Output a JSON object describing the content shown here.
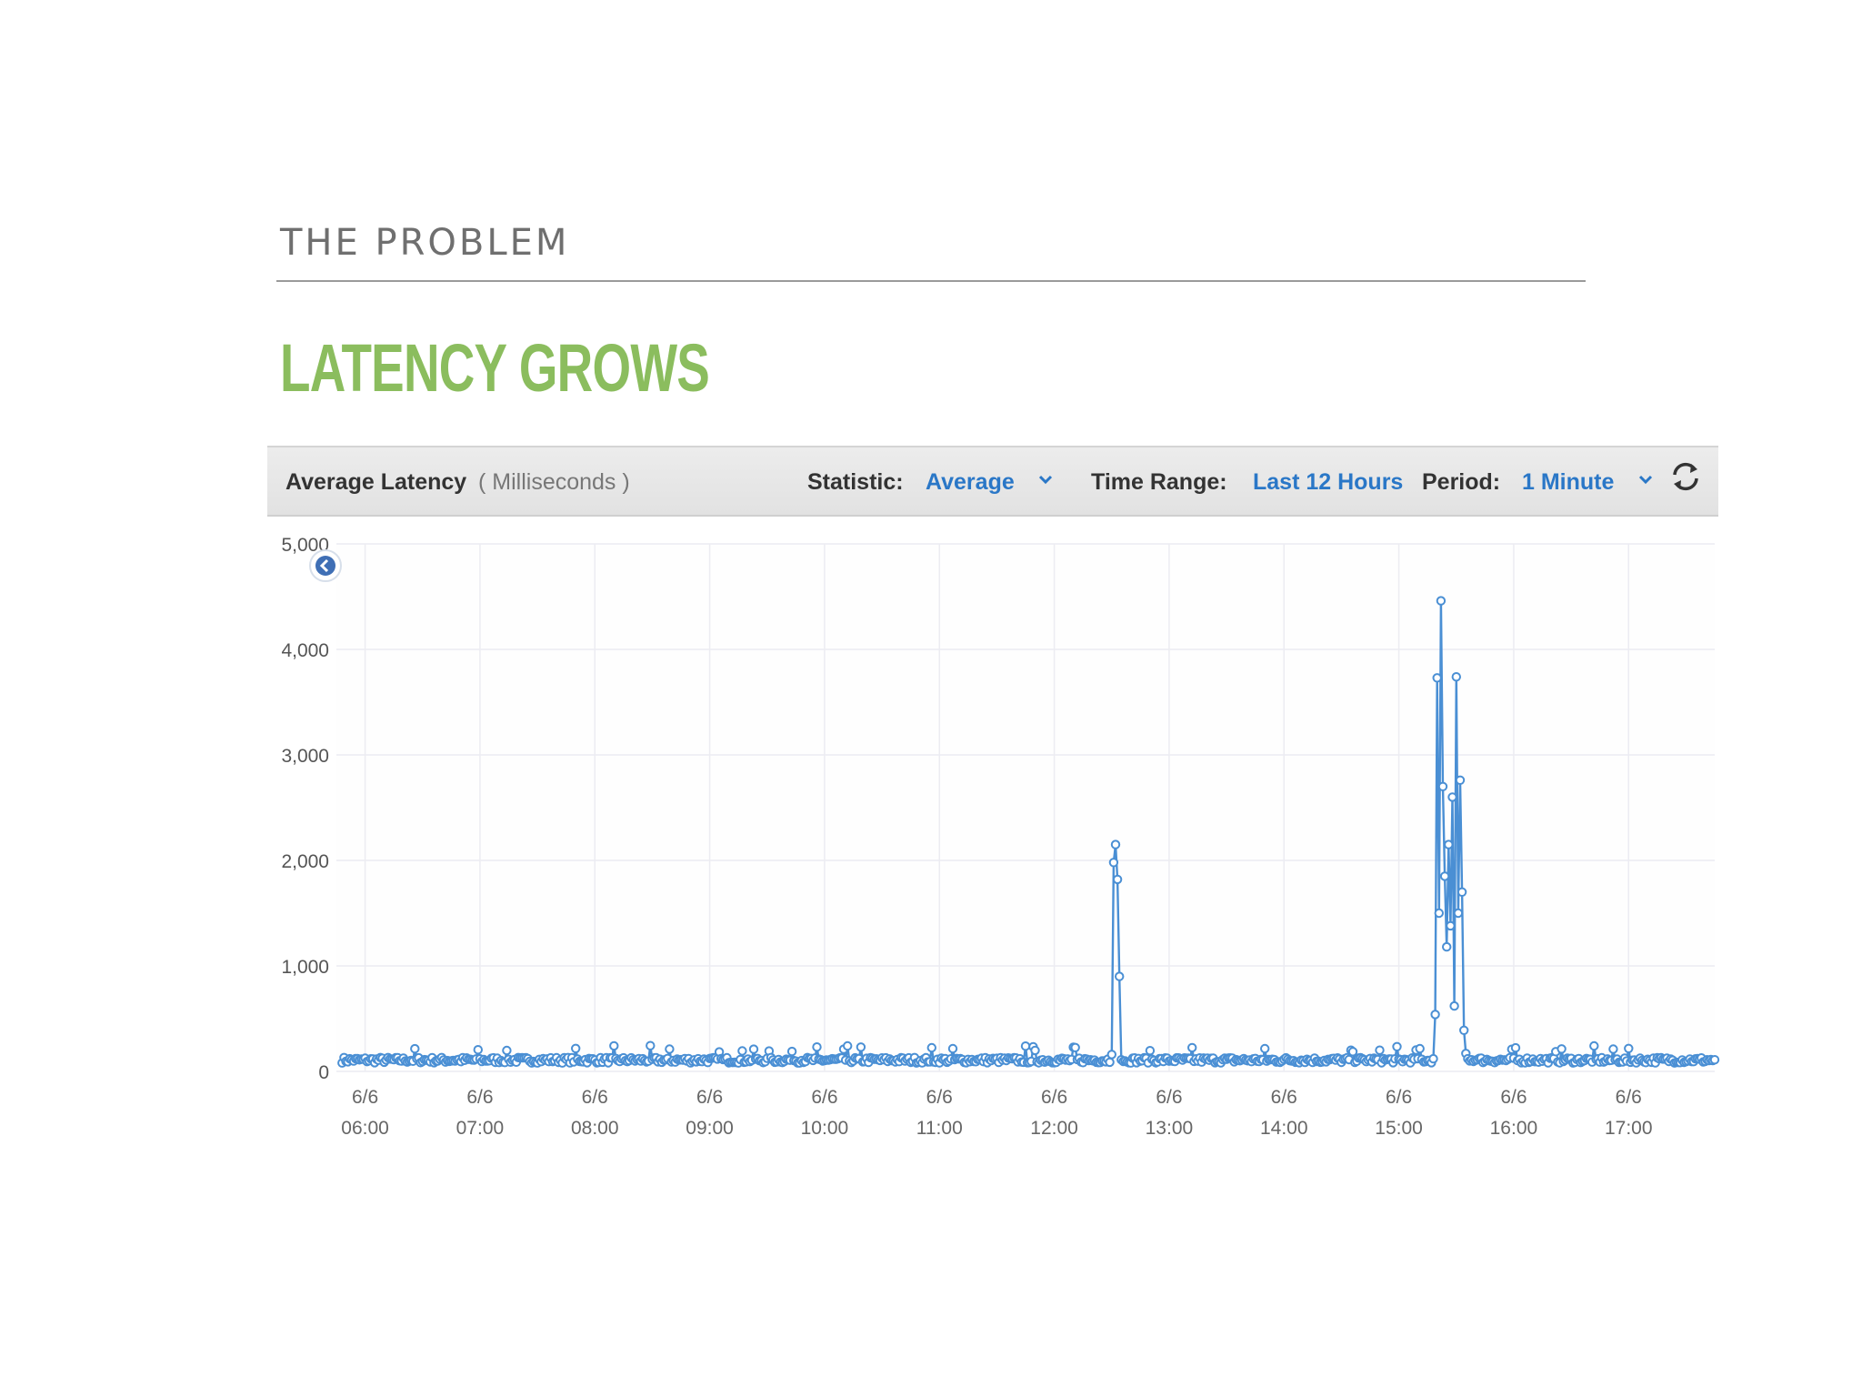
{
  "slide": {
    "kicker": "THE PROBLEM",
    "headline": "LATENCY GROWS"
  },
  "toolbar": {
    "metric_name": "Average Latency",
    "metric_unit": "( Milliseconds )",
    "statistic_label": "Statistic:",
    "statistic_value": "Average",
    "time_range_label": "Time Range:",
    "time_range_value": "Last 12 Hours",
    "period_label": "Period:",
    "period_value": "1 Minute",
    "accent_color": "#2a77c7",
    "refresh_icon": "refresh-icon",
    "dropdown_icon": "chevron-down-icon"
  },
  "chart_data": {
    "type": "line",
    "title": "",
    "xlabel": "",
    "ylabel": "",
    "ylim": [
      0,
      5000
    ],
    "yticks": [
      0,
      1000,
      2000,
      3000,
      4000,
      5000
    ],
    "ytick_labels": [
      "0",
      "1,000",
      "2,000",
      "3,000",
      "4,000",
      "5,000"
    ],
    "xlim": [
      "05:45",
      "17:45"
    ],
    "xticks": [
      "06:00",
      "07:00",
      "08:00",
      "09:00",
      "10:00",
      "11:00",
      "12:00",
      "13:00",
      "14:00",
      "15:00",
      "16:00",
      "17:00"
    ],
    "xtick_labels": [
      [
        "6/6",
        "06:00"
      ],
      [
        "6/6",
        "07:00"
      ],
      [
        "6/6",
        "08:00"
      ],
      [
        "6/6",
        "09:00"
      ],
      [
        "6/6",
        "10:00"
      ],
      [
        "6/6",
        "11:00"
      ],
      [
        "6/6",
        "12:00"
      ],
      [
        "6/6",
        "13:00"
      ],
      [
        "6/6",
        "14:00"
      ],
      [
        "6/6",
        "15:00"
      ],
      [
        "6/6",
        "16:00"
      ],
      [
        "6/6",
        "17:00"
      ]
    ],
    "grid": true,
    "line_color": "#4a8fd4",
    "baseline_ms": 100,
    "series": [
      {
        "x": [
          "12:30",
          "12:31",
          "12:32",
          "12:33",
          "12:34",
          "12:35",
          "12:36",
          "12:37",
          "12:38",
          "15:18",
          "15:19",
          "15:20",
          "15:21",
          "15:22",
          "15:23",
          "15:24",
          "15:25",
          "15:26",
          "15:27",
          "15:28",
          "15:29",
          "15:30",
          "15:31",
          "15:32",
          "15:33",
          "15:34",
          "15:35",
          "15:36",
          "15:37",
          "15:38",
          "15:39",
          "15:40"
        ],
        "y": [
          160,
          1980,
          2150,
          1820,
          900,
          110,
          95,
          100,
          90,
          120,
          540,
          3730,
          1500,
          4460,
          2700,
          1850,
          1180,
          2150,
          1380,
          2600,
          620,
          3740,
          1500,
          2760,
          1700,
          390,
          170,
          120,
          100,
          110,
          95,
          105
        ]
      }
    ]
  }
}
